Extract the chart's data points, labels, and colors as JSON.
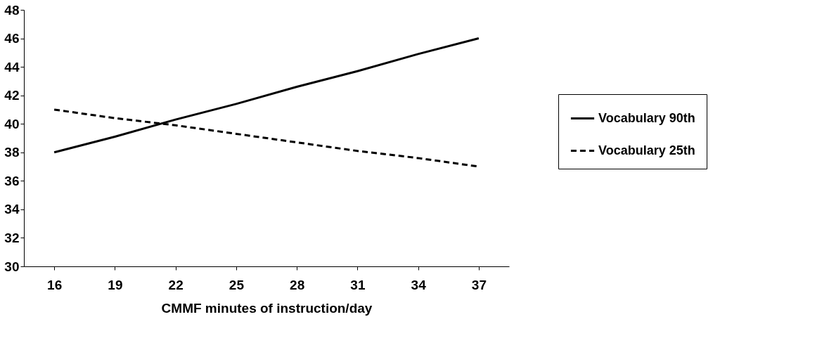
{
  "chart_data": {
    "type": "line",
    "xlabel": "CMMF minutes of instruction/day",
    "categories": [
      "16",
      "19",
      "22",
      "25",
      "28",
      "31",
      "34",
      "37"
    ],
    "series": [
      {
        "name": "Vocabulary 90th",
        "color": "#000000",
        "line_style": "solid",
        "values": [
          38,
          39.1,
          40.3,
          41.4,
          42.6,
          43.7,
          44.9,
          46
        ]
      },
      {
        "name": "Vocabulary 25th",
        "color": "#000000",
        "line_style": "dashed",
        "values": [
          41,
          40.4,
          39.9,
          39.3,
          38.7,
          38.1,
          37.6,
          37
        ]
      }
    ],
    "ylim": [
      30,
      48
    ],
    "yticks": [
      30,
      32,
      34,
      36,
      38,
      40,
      42,
      44,
      46,
      48
    ],
    "grid": false,
    "legend": "right",
    "marker": "none"
  }
}
